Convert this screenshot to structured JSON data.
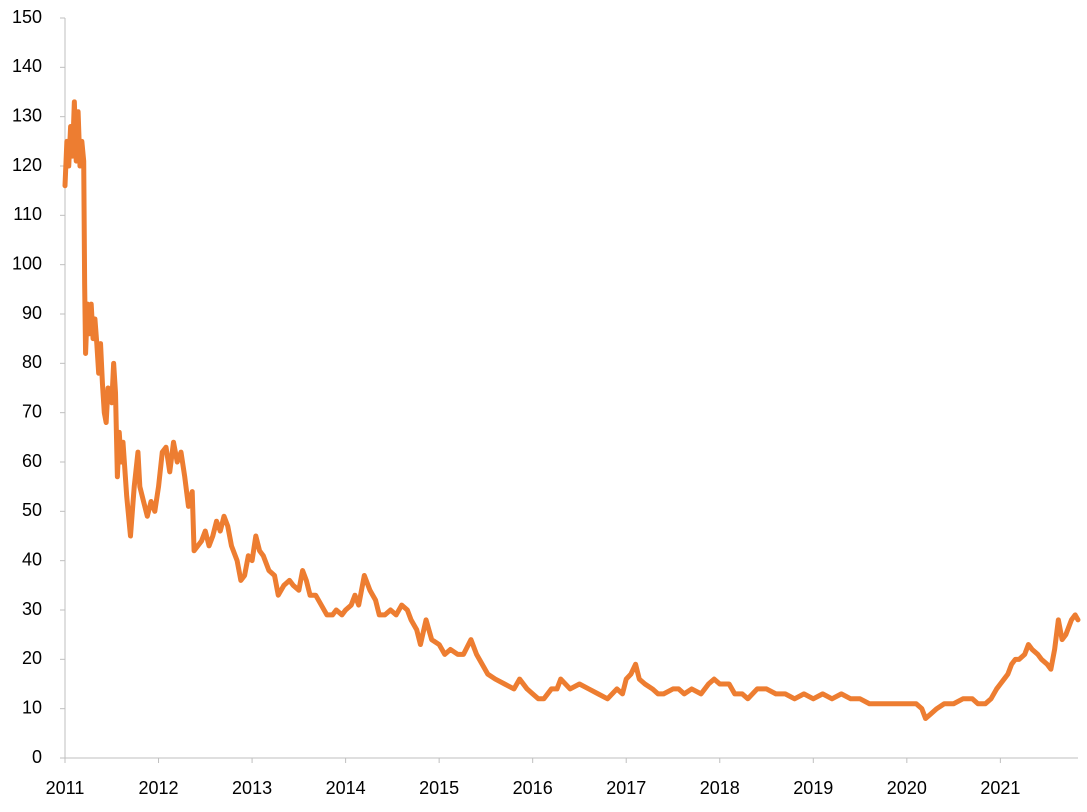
{
  "chart_data": {
    "type": "line",
    "color": "#ed7d31",
    "x": [
      2011.0,
      2011.02,
      2011.04,
      2011.06,
      2011.08,
      2011.1,
      2011.12,
      2011.14,
      2011.16,
      2011.18,
      2011.2,
      2011.21,
      2011.22,
      2011.24,
      2011.26,
      2011.28,
      2011.3,
      2011.32,
      2011.34,
      2011.36,
      2011.38,
      2011.4,
      2011.42,
      2011.44,
      2011.46,
      2011.5,
      2011.52,
      2011.54,
      2011.56,
      2011.58,
      2011.6,
      2011.62,
      2011.66,
      2011.7,
      2011.74,
      2011.78,
      2011.8,
      2011.84,
      2011.88,
      2011.92,
      2011.96,
      2012.0,
      2012.04,
      2012.08,
      2012.12,
      2012.16,
      2012.2,
      2012.24,
      2012.28,
      2012.32,
      2012.36,
      2012.38,
      2012.42,
      2012.46,
      2012.5,
      2012.54,
      2012.58,
      2012.62,
      2012.66,
      2012.7,
      2012.74,
      2012.78,
      2012.84,
      2012.88,
      2012.92,
      2012.96,
      2013.0,
      2013.04,
      2013.08,
      2013.12,
      2013.18,
      2013.24,
      2013.28,
      2013.34,
      2013.4,
      2013.44,
      2013.5,
      2013.54,
      2013.58,
      2013.62,
      2013.68,
      2013.74,
      2013.8,
      2013.86,
      2013.9,
      2013.96,
      2014.0,
      2014.06,
      2014.1,
      2014.14,
      2014.2,
      2014.26,
      2014.32,
      2014.36,
      2014.42,
      2014.48,
      2014.54,
      2014.6,
      2014.66,
      2014.7,
      2014.76,
      2014.8,
      2014.86,
      2014.92,
      2015.0,
      2015.06,
      2015.12,
      2015.2,
      2015.26,
      2015.34,
      2015.4,
      2015.46,
      2015.52,
      2015.6,
      2015.7,
      2015.8,
      2015.86,
      2015.94,
      2016.0,
      2016.06,
      2016.12,
      2016.2,
      2016.26,
      2016.3,
      2016.4,
      2016.5,
      2016.6,
      2016.7,
      2016.8,
      2016.9,
      2016.96,
      2017.0,
      2017.05,
      2017.1,
      2017.14,
      2017.2,
      2017.28,
      2017.34,
      2017.4,
      2017.5,
      2017.56,
      2017.62,
      2017.7,
      2017.8,
      2017.88,
      2017.94,
      2018.0,
      2018.1,
      2018.16,
      2018.24,
      2018.3,
      2018.4,
      2018.5,
      2018.6,
      2018.7,
      2018.8,
      2018.9,
      2019.0,
      2019.1,
      2019.2,
      2019.3,
      2019.4,
      2019.5,
      2019.6,
      2019.7,
      2019.8,
      2019.9,
      2020.0,
      2020.1,
      2020.16,
      2020.2,
      2020.26,
      2020.32,
      2020.4,
      2020.5,
      2020.6,
      2020.7,
      2020.76,
      2020.84,
      2020.9,
      2020.96,
      2021.0,
      2021.04,
      2021.08,
      2021.12,
      2021.16,
      2021.2,
      2021.26,
      2021.3,
      2021.34,
      2021.4,
      2021.44,
      2021.5,
      2021.54,
      2021.58,
      2021.62,
      2021.66,
      2021.7,
      2021.76,
      2021.8,
      2021.83
    ],
    "values": [
      116,
      125,
      120,
      128,
      122,
      133,
      121,
      131,
      120,
      125,
      121,
      96,
      82,
      92,
      86,
      92,
      85,
      89,
      84,
      78,
      84,
      76,
      70,
      68,
      75,
      72,
      80,
      74,
      57,
      66,
      60,
      64,
      53,
      45,
      55,
      62,
      55,
      52,
      49,
      52,
      50,
      55,
      62,
      63,
      58,
      64,
      60,
      62,
      57,
      51,
      54,
      42,
      43,
      44,
      46,
      43,
      45,
      48,
      46,
      49,
      47,
      43,
      40,
      36,
      37,
      41,
      40,
      45,
      42,
      41,
      38,
      37,
      33,
      35,
      36,
      35,
      34,
      38,
      36,
      33,
      33,
      31,
      29,
      29,
      30,
      29,
      30,
      31,
      33,
      31,
      37,
      34,
      32,
      29,
      29,
      30,
      29,
      31,
      30,
      28,
      26,
      23,
      28,
      24,
      23,
      21,
      22,
      21,
      21,
      24,
      21,
      19,
      17,
      16,
      15,
      14,
      16,
      14,
      13,
      12,
      12,
      14,
      14,
      16,
      14,
      15,
      14,
      13,
      12,
      14,
      13,
      16,
      17,
      19,
      16,
      15,
      14,
      13,
      13,
      14,
      14,
      13,
      14,
      13,
      15,
      16,
      15,
      15,
      13,
      13,
      12,
      14,
      14,
      13,
      13,
      12,
      13,
      12,
      13,
      12,
      13,
      12,
      12,
      11,
      11,
      11,
      11,
      11,
      11,
      10,
      8,
      9,
      10,
      11,
      11,
      12,
      12,
      11,
      11,
      12,
      14,
      15,
      16,
      17,
      19,
      20,
      20,
      21,
      23,
      22,
      21,
      20,
      19,
      18,
      22,
      28,
      24,
      25,
      28,
      29,
      28
    ],
    "xlim": [
      2011,
      2021.83
    ],
    "ylim": [
      0,
      150
    ],
    "xticks": [
      2011,
      2012,
      2013,
      2014,
      2015,
      2016,
      2017,
      2018,
      2019,
      2020,
      2021
    ],
    "yticks": [
      0,
      10,
      20,
      30,
      40,
      50,
      60,
      70,
      80,
      90,
      100,
      110,
      120,
      130,
      140,
      150
    ]
  }
}
